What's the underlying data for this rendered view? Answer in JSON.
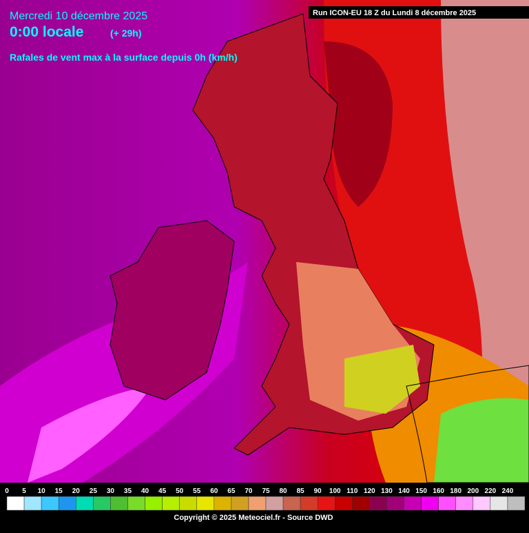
{
  "header": {
    "date": "Mercredi 10 décembre 2025",
    "time": "0:00 locale",
    "offset": "(+ 29h)",
    "subtitle": "Rafales de vent max à la surface depuis 0h (km/h)",
    "run": "Run ICON-EU 18 Z du Lundi 8 décembre 2025"
  },
  "legend": {
    "labels": [
      0,
      5,
      10,
      15,
      20,
      25,
      30,
      35,
      40,
      45,
      50,
      55,
      60,
      65,
      70,
      75,
      80,
      85,
      90,
      100,
      110,
      120,
      130,
      140,
      150,
      160,
      180,
      200,
      220,
      240
    ],
    "colors": [
      "#ffffff",
      "#a0e6ff",
      "#3cc8ff",
      "#1e96f0",
      "#00dcb4",
      "#28c864",
      "#50be32",
      "#78dc28",
      "#96f000",
      "#b4f000",
      "#c8dc00",
      "#e6e600",
      "#dcb400",
      "#d2a020",
      "#f0a070",
      "#d2a0a0",
      "#c86450",
      "#d23c28",
      "#e61414",
      "#c80000",
      "#a00000",
      "#8c0050",
      "#a00078",
      "#c800b4",
      "#f000f0",
      "#ff50ff",
      "#ff8cff",
      "#ffc8ff",
      "#e6e6e6",
      "#bebebe"
    ]
  },
  "footer": {
    "copyright": "Copyright © 2025 Meteociel.fr - Source DWD"
  }
}
